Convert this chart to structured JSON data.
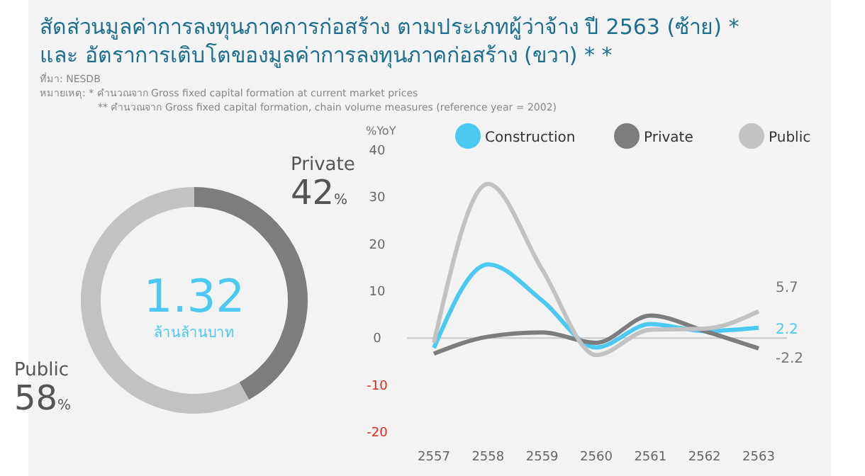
{
  "chart_data": [
    {
      "type": "donut",
      "title": "สัดส่วนมูลค่าการลงทุนภาคการก่อสร้าง ตามประเภทผู้ว่าจ้าง ปี 2563 (ซ้าย) *",
      "subtitle": "และ อัตราการเติบโตของมูลค่าการลงทุนภาคก่อสร้าง (ขวา) * *",
      "categories": [
        "Private",
        "Public"
      ],
      "values": [
        42,
        58
      ],
      "colors": [
        "#7b7d7e",
        "#c2c2c2"
      ],
      "value_labels": [
        "42%",
        "58%"
      ],
      "annotations": [
        "1.32",
        "ล้านล้านบาท",
        "ที่มา: NESDB",
        "หมายเหตุ: * คำนวณจาก Gross fixed capital formation at current market prices",
        "** คำนวณจาก Gross fixed capital formation, chain volume measures (reference year = 2002)"
      ]
    },
    {
      "type": "line",
      "ylabel": "%YoY",
      "categories": [
        "2557",
        "2558",
        "2559",
        "2560",
        "2561",
        "2562",
        "2563"
      ],
      "ylim": [
        -20,
        40
      ],
      "yticks": [
        -20,
        -10,
        0,
        10,
        20,
        30,
        40
      ],
      "legend": "top",
      "series": [
        {
          "name": "Construction",
          "color": "#4cc9f0",
          "values": [
            -2.1,
            15.7,
            8,
            -2,
            3,
            1.5,
            2.2
          ],
          "value_labels": [
            null,
            null,
            null,
            null,
            null,
            null,
            "2.2"
          ]
        },
        {
          "name": "Private",
          "color": "#7b7d7e",
          "values": [
            -3.3,
            0.3,
            1.2,
            -1,
            4.8,
            1.5,
            -2.2
          ],
          "value_labels": [
            null,
            null,
            null,
            null,
            null,
            null,
            "-2.2"
          ]
        },
        {
          "name": "Public",
          "color": "#c2c2c2",
          "values": [
            -1,
            32.8,
            14.6,
            -3.6,
            1.8,
            2,
            5.7
          ],
          "value_labels": [
            null,
            null,
            null,
            null,
            null,
            null,
            "5.7"
          ]
        }
      ]
    }
  ]
}
